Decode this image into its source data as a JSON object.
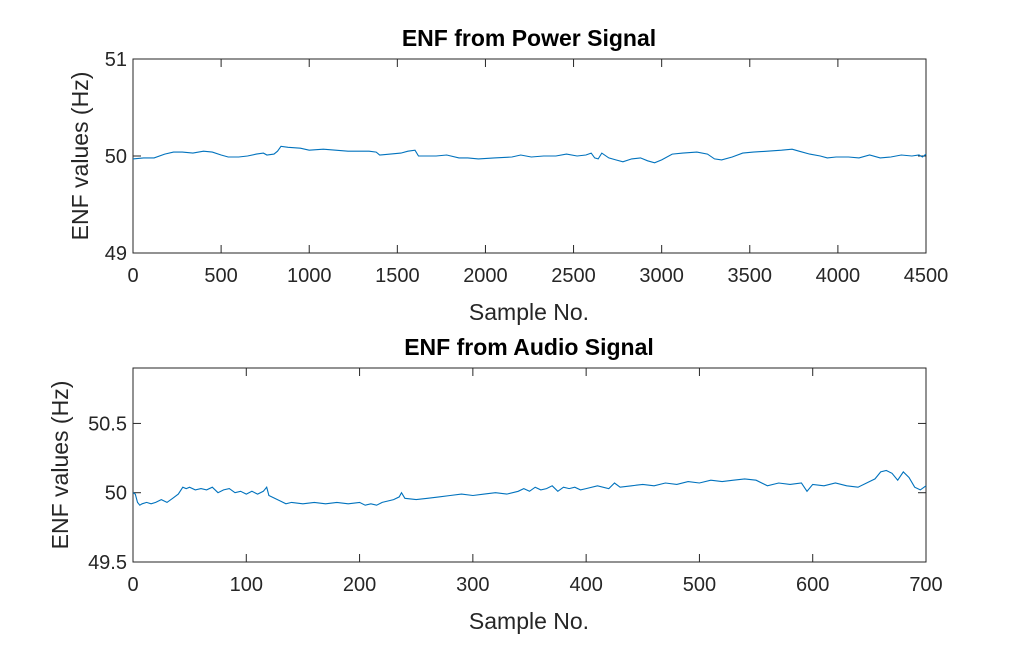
{
  "chart_data": [
    {
      "type": "line",
      "title": "ENF from Power Signal",
      "xlabel": "Sample No.",
      "ylabel": "ENF values (Hz)",
      "xlim": [
        0,
        4500
      ],
      "ylim": [
        49,
        51
      ],
      "xticks": [
        0,
        500,
        1000,
        1500,
        2000,
        2500,
        3000,
        3500,
        4000,
        4500
      ],
      "xtick_labels": [
        "0",
        "500",
        "1000",
        "1500",
        "2000",
        "2500",
        "3000",
        "3500",
        "4000",
        "4500"
      ],
      "yticks": [
        49,
        50,
        51
      ],
      "ytick_labels": [
        "49",
        "50",
        "51"
      ],
      "grid": false,
      "color": "#0072BD",
      "series": [
        {
          "x": [
            0,
            60,
            120,
            180,
            230,
            280,
            340,
            400,
            450,
            500,
            540,
            560,
            600,
            650,
            700,
            740,
            760,
            800,
            820,
            840,
            880,
            950,
            1000,
            1080,
            1150,
            1220,
            1280,
            1340,
            1380,
            1400,
            1460,
            1520,
            1560,
            1600,
            1620,
            1660,
            1720,
            1780,
            1850,
            1900,
            1960,
            2050,
            2150,
            2200,
            2260,
            2330,
            2400,
            2460,
            2520,
            2570,
            2600,
            2620,
            2640,
            2660,
            2700,
            2740,
            2780,
            2830,
            2880,
            2920,
            2960,
            3000,
            3060,
            3120,
            3200,
            3260,
            3300,
            3340,
            3400,
            3460,
            3520,
            3600,
            3680,
            3740,
            3780,
            3840,
            3900,
            3940,
            3990,
            4060,
            4120,
            4180,
            4240,
            4300,
            4360,
            4420,
            4460,
            4480,
            4500
          ],
          "y": [
            49.97,
            49.98,
            49.98,
            50.02,
            50.04,
            50.04,
            50.03,
            50.05,
            50.04,
            50.01,
            49.99,
            49.99,
            49.99,
            50.0,
            50.02,
            50.03,
            50.01,
            50.02,
            50.05,
            50.1,
            50.09,
            50.08,
            50.06,
            50.07,
            50.06,
            50.05,
            50.05,
            50.05,
            50.04,
            50.01,
            50.02,
            50.03,
            50.05,
            50.06,
            50.0,
            50.0,
            50.0,
            50.01,
            49.98,
            49.98,
            49.97,
            49.98,
            49.99,
            50.01,
            49.99,
            50.0,
            50.0,
            50.02,
            50.0,
            50.01,
            50.03,
            49.98,
            49.97,
            50.03,
            49.98,
            49.96,
            49.94,
            49.97,
            49.98,
            49.95,
            49.93,
            49.96,
            50.02,
            50.03,
            50.04,
            50.02,
            49.97,
            49.96,
            49.99,
            50.03,
            50.04,
            50.05,
            50.06,
            50.07,
            50.05,
            50.02,
            50.0,
            49.98,
            49.99,
            49.99,
            49.98,
            50.01,
            49.98,
            49.99,
            50.01,
            50.0,
            50.01,
            49.99,
            50.02
          ]
        }
      ]
    },
    {
      "type": "line",
      "title": "ENF from Audio Signal",
      "xlabel": "Sample No.",
      "ylabel": "ENF values (Hz)",
      "xlim": [
        0,
        700
      ],
      "ylim": [
        49.5,
        50.9
      ],
      "xticks": [
        0,
        100,
        200,
        300,
        400,
        500,
        600,
        700
      ],
      "xtick_labels": [
        "0",
        "100",
        "200",
        "300",
        "400",
        "500",
        "600",
        "700"
      ],
      "yticks": [
        49.5,
        50,
        50.5
      ],
      "ytick_labels": [
        "49.5",
        "50",
        "50.5"
      ],
      "grid": false,
      "color": "#0072BD",
      "series": [
        {
          "x": [
            0,
            2,
            4,
            6,
            8,
            12,
            16,
            20,
            25,
            30,
            35,
            40,
            44,
            47,
            50,
            55,
            60,
            65,
            70,
            75,
            80,
            85,
            90,
            95,
            100,
            105,
            110,
            115,
            118,
            120,
            125,
            130,
            135,
            140,
            150,
            160,
            170,
            180,
            190,
            200,
            205,
            210,
            215,
            220,
            230,
            235,
            237,
            240,
            250,
            260,
            270,
            280,
            290,
            300,
            310,
            320,
            330,
            340,
            345,
            350,
            355,
            360,
            365,
            370,
            375,
            380,
            385,
            390,
            395,
            400,
            410,
            420,
            425,
            430,
            440,
            450,
            460,
            470,
            480,
            490,
            500,
            510,
            520,
            530,
            540,
            550,
            560,
            570,
            580,
            590,
            595,
            600,
            610,
            620,
            630,
            640,
            650,
            655,
            660,
            665,
            670,
            675,
            680,
            685,
            690,
            695,
            700
          ],
          "y": [
            50.0,
            49.99,
            49.93,
            49.91,
            49.92,
            49.93,
            49.92,
            49.93,
            49.95,
            49.93,
            49.96,
            49.99,
            50.04,
            50.03,
            50.04,
            50.02,
            50.03,
            50.02,
            50.04,
            50.0,
            50.02,
            50.03,
            50.0,
            50.01,
            49.99,
            50.01,
            49.99,
            50.01,
            50.04,
            49.98,
            49.96,
            49.94,
            49.92,
            49.93,
            49.92,
            49.93,
            49.92,
            49.93,
            49.92,
            49.93,
            49.91,
            49.92,
            49.91,
            49.93,
            49.95,
            49.97,
            50.0,
            49.96,
            49.95,
            49.96,
            49.97,
            49.98,
            49.99,
            49.98,
            49.99,
            50.0,
            49.99,
            50.01,
            50.03,
            50.01,
            50.04,
            50.02,
            50.03,
            50.05,
            50.01,
            50.04,
            50.03,
            50.04,
            50.02,
            50.03,
            50.05,
            50.03,
            50.07,
            50.04,
            50.05,
            50.06,
            50.05,
            50.07,
            50.06,
            50.08,
            50.07,
            50.09,
            50.08,
            50.09,
            50.1,
            50.09,
            50.05,
            50.07,
            50.06,
            50.07,
            50.01,
            50.06,
            50.05,
            50.07,
            50.05,
            50.04,
            50.08,
            50.1,
            50.15,
            50.16,
            50.14,
            50.09,
            50.15,
            50.11,
            50.04,
            50.02,
            50.05
          ]
        }
      ]
    }
  ]
}
